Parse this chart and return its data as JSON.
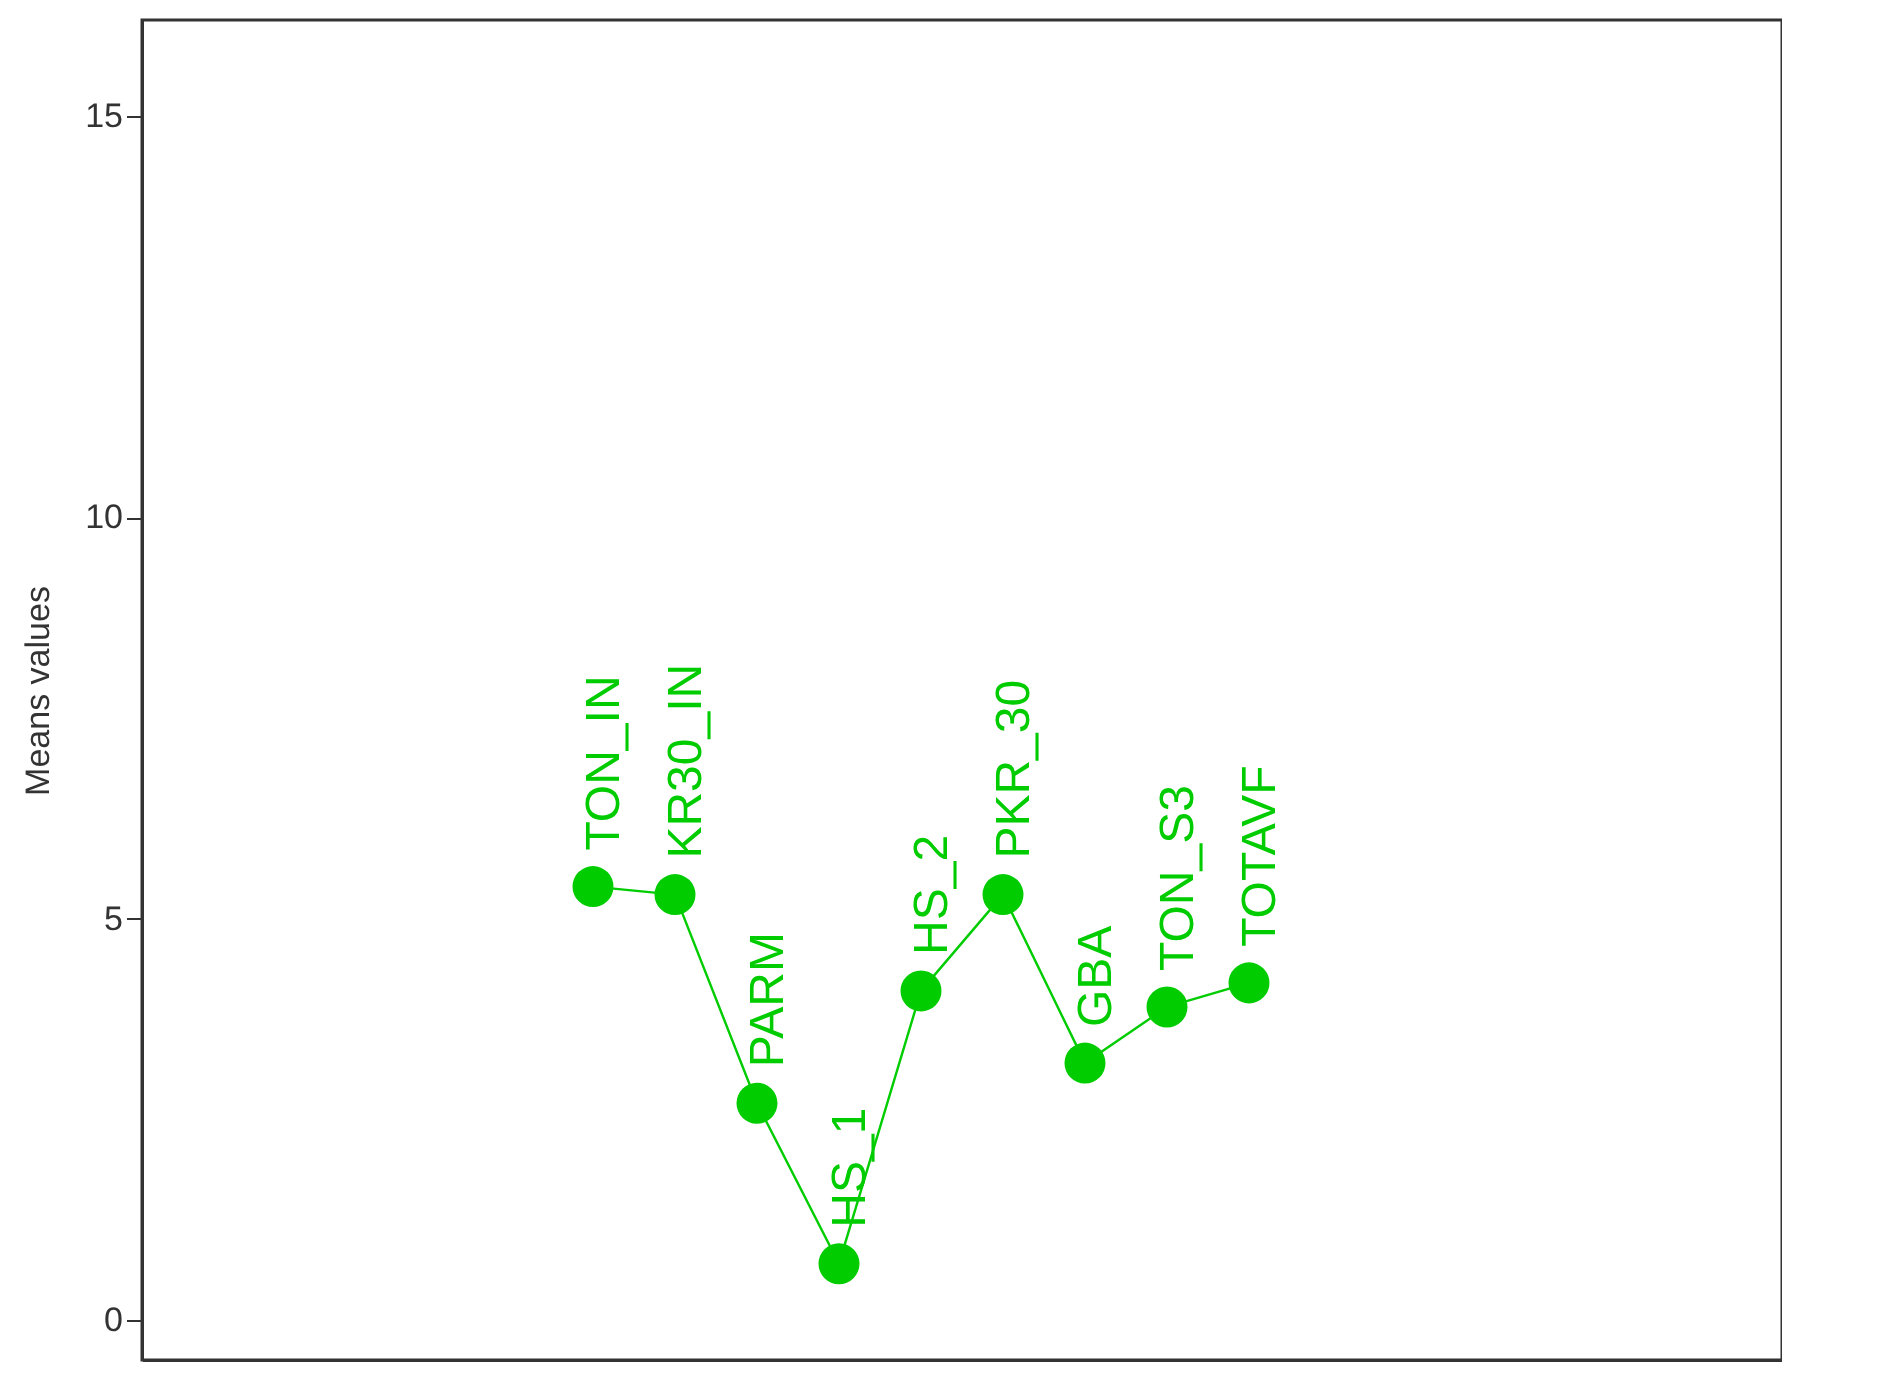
{
  "chart_data": {
    "type": "line",
    "categories": [
      null,
      null,
      null,
      null,
      null,
      null,
      null,
      null,
      null,
      null,
      null,
      null,
      null,
      null,
      null,
      null,
      null,
      null,
      null,
      null
    ],
    "series": [
      {
        "color": "#00cc00",
        "values": [
          null,
          null,
          null,
          null,
          null,
          5.4,
          5.3,
          2.7,
          0.7,
          4.1,
          5.3,
          3.2,
          3.9,
          4.2,
          null,
          null,
          null,
          null,
          null,
          null
        ]
      }
    ],
    "annotations": [
      {
        "text": "TON_IN",
        "y": 5.4
      },
      {
        "text": "KR30_IN",
        "y": 5.3
      },
      {
        "text": "PARM",
        "y": 2.7
      },
      {
        "text": "HS_1",
        "y": 0.7
      },
      {
        "text": "HS_2",
        "y": 4.1
      },
      {
        "text": "PKR_30",
        "y": 5.3
      },
      {
        "text": "GBA",
        "y": 3.2
      },
      {
        "text": "TON_S3",
        "y": 3.9
      },
      {
        "text": "TOTAVF",
        "y": 4.2
      }
    ],
    "ylabel": "Means values",
    "ylim": [
      -0.5,
      16.2
    ],
    "yticks": [
      0,
      5,
      10,
      15
    ],
    "tick_labels": "y",
    "grid": false,
    "legend": false,
    "marker": "circle",
    "line_style": "solid"
  }
}
